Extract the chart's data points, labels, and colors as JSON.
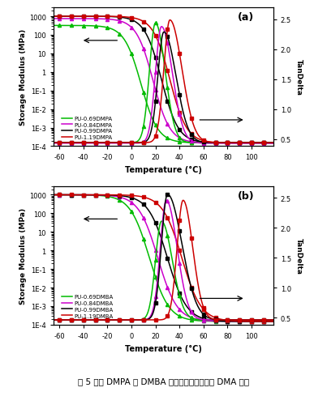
{
  "title_a": "(a)",
  "title_b": "(b)",
  "xlabel": "Temperature (°C)",
  "ylabel_left": "Storage Modulus (MPa)",
  "ylabel_right": "TanDelta",
  "xlim": [
    -65,
    118
  ],
  "ylim_log": [
    0.0001,
    3000
  ],
  "ylim_tan": [
    0.38,
    2.7
  ],
  "yticks_tan_a": [
    0.5,
    1.0,
    1.5,
    2.0,
    2.5
  ],
  "yticks_tan_b": [
    0.5,
    1.0,
    1.5,
    2.0,
    2.5
  ],
  "bg_color": "#ffffff",
  "caption": "图 5 不同 DMPA 和 DMBA 摩尔比聚氨酯涂膜的 DMA 曲线"
}
